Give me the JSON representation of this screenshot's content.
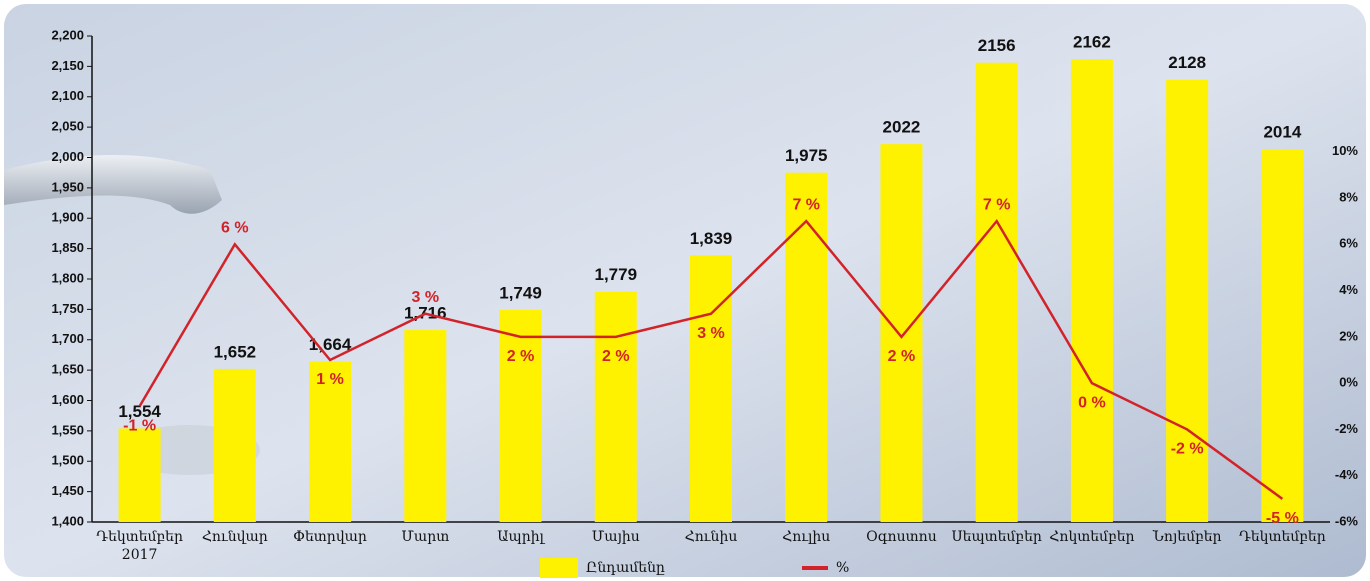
{
  "chart_data": {
    "type": "bar-line",
    "categories": [
      "Դեկտեմբեր",
      "Հունվար",
      "Փետրվար",
      "Մարտ",
      "Ապրիլ",
      "Մայիս",
      "Հունիս",
      "Հուլիս",
      "Օգոստոս",
      "Սեպտեմբեր",
      "Հոկտեմբեր",
      "Նոյեմբեր",
      "Դեկտեմբեր"
    ],
    "category_sublabels": [
      "2017",
      null,
      null,
      null,
      null,
      null,
      null,
      null,
      null,
      null,
      null,
      null,
      null
    ],
    "series": [
      {
        "name": "Ընդամենը",
        "color": "#fff200",
        "kind": "bar",
        "values": [
          1554,
          1652,
          1664,
          1716,
          1749,
          1779,
          1839,
          1975,
          2022,
          2156,
          2162,
          2128,
          2014
        ],
        "value_labels": [
          "1,554",
          "1,652",
          "1,664",
          "1,716",
          "1,749",
          "1,779",
          "1,839",
          "1,975",
          "2022",
          "2156",
          "2162",
          "2128",
          "2014"
        ]
      },
      {
        "name": "%",
        "color": "#d2232a",
        "kind": "line",
        "axis": "y2",
        "values": [
          -1,
          6,
          1,
          3,
          2,
          2,
          3,
          7,
          2,
          7,
          0,
          -2,
          -5
        ],
        "value_labels": [
          "-1 %",
          "6 %",
          "1 %",
          "3 %",
          "2 %",
          "2 %",
          "3 %",
          "7 %",
          "2 %",
          "7 %",
          "0 %",
          "-2 %",
          "-5 %"
        ]
      }
    ],
    "ylim": [
      1400,
      2200
    ],
    "yticks": [
      {
        "value": 1400,
        "label": "1,400"
      },
      {
        "value": 1450,
        "label": "1,450"
      },
      {
        "value": 1500,
        "label": "1,500"
      },
      {
        "value": 1550,
        "label": "1,550"
      },
      {
        "value": 1600,
        "label": "1,600"
      },
      {
        "value": 1650,
        "label": "1,650"
      },
      {
        "value": 1700,
        "label": "1,700"
      },
      {
        "value": 1750,
        "label": "1,750"
      },
      {
        "value": 1800,
        "label": "1,800"
      },
      {
        "value": 1850,
        "label": "1,850"
      },
      {
        "value": 1900,
        "label": "1,900"
      },
      {
        "value": 1950,
        "label": "1,950"
      },
      {
        "value": 2000,
        "label": "2,000"
      },
      {
        "value": 2050,
        "label": "2,050"
      },
      {
        "value": 2100,
        "label": "2,100"
      },
      {
        "value": 2150,
        "label": "2,150"
      },
      {
        "value": 2200,
        "label": "2,200"
      }
    ],
    "y2lim": [
      -6,
      15
    ],
    "y2ticks": [
      {
        "value": -6,
        "label": "-6%"
      },
      {
        "value": -4,
        "label": "-4%"
      },
      {
        "value": -2,
        "label": "-2%"
      },
      {
        "value": 0,
        "label": "0%"
      },
      {
        "value": 2,
        "label": "2%"
      },
      {
        "value": 4,
        "label": "4%"
      },
      {
        "value": 6,
        "label": "6%"
      },
      {
        "value": 8,
        "label": "8%"
      },
      {
        "value": 10,
        "label": "10%"
      }
    ],
    "legend": "bottom"
  }
}
